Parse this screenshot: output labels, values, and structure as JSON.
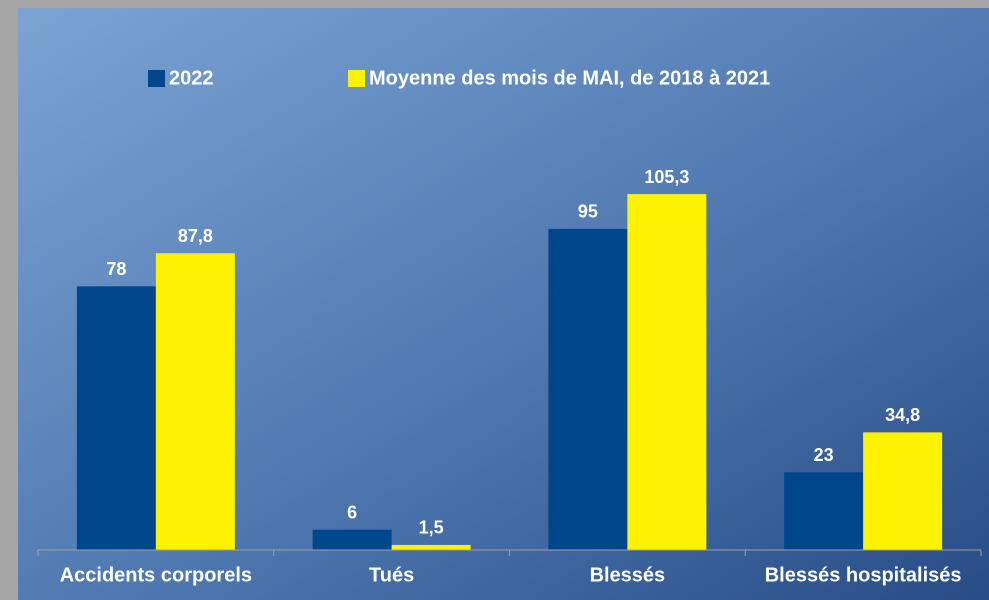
{
  "chart_data": {
    "type": "bar",
    "categories": [
      "Accidents corporels",
      "Tués",
      "Blessés",
      "Blessés hospitalisés"
    ],
    "series": [
      {
        "name": "2022",
        "color": "#00468b",
        "values": [
          78,
          6,
          95,
          23
        ],
        "value_labels": [
          "78",
          "6",
          "95",
          "23"
        ]
      },
      {
        "name": "Moyenne des mois de MAI, de 2018 à 2021",
        "color": "#fff200",
        "values": [
          87.8,
          1.5,
          105.3,
          34.8
        ],
        "value_labels": [
          "87,8",
          "1,5",
          "105,3",
          "34,8"
        ]
      }
    ],
    "ylim": [
      0,
      120
    ]
  }
}
